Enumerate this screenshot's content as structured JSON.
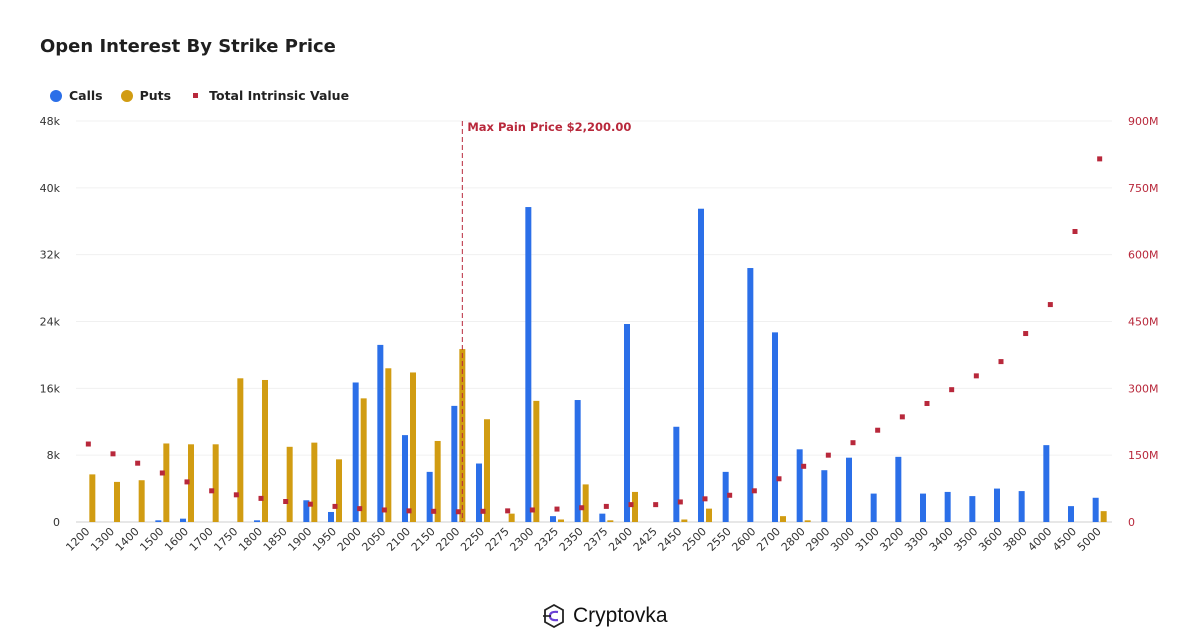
{
  "chart_data": {
    "type": "bar",
    "title": "Open Interest By Strike Price",
    "categories": [
      "1200",
      "1300",
      "1400",
      "1500",
      "1600",
      "1700",
      "1750",
      "1800",
      "1850",
      "1900",
      "1950",
      "2000",
      "2050",
      "2100",
      "2150",
      "2200",
      "2250",
      "2275",
      "2300",
      "2325",
      "2350",
      "2375",
      "2400",
      "2425",
      "2450",
      "2500",
      "2550",
      "2600",
      "2700",
      "2800",
      "2900",
      "3000",
      "3100",
      "3200",
      "3300",
      "3400",
      "3500",
      "3600",
      "3800",
      "4000",
      "4500",
      "5000"
    ],
    "y_left": {
      "ticks": [
        "0",
        "8k",
        "16k",
        "24k",
        "32k",
        "40k",
        "48k"
      ],
      "ylim": [
        0,
        48000
      ]
    },
    "y_right": {
      "ticks": [
        "0",
        "150M",
        "300M",
        "450M",
        "600M",
        "750M",
        "900M"
      ],
      "ylim": [
        0,
        900000000
      ]
    },
    "series": [
      {
        "name": "Calls",
        "type": "bar",
        "color": "#2b6fe8",
        "values": [
          0,
          0,
          0,
          200,
          400,
          0,
          0,
          200,
          0,
          2600,
          1200,
          16700,
          21200,
          10400,
          6000,
          13900,
          7000,
          0,
          37700,
          700,
          14600,
          1000,
          23700,
          0,
          11400,
          37500,
          6000,
          30400,
          22700,
          8700,
          6200,
          7700,
          3400,
          7800,
          3400,
          3600,
          3100,
          4000,
          3700,
          9200,
          1900,
          2900
        ]
      },
      {
        "name": "Puts",
        "type": "bar",
        "color": "#d19c12",
        "values": [
          5700,
          4800,
          5000,
          9400,
          9300,
          9300,
          17200,
          17000,
          9000,
          9500,
          7500,
          14800,
          18400,
          17900,
          9700,
          20700,
          12300,
          1000,
          14500,
          300,
          4500,
          200,
          3600,
          0,
          300,
          1600,
          0,
          0,
          700,
          200,
          0,
          0,
          0,
          0,
          0,
          0,
          0,
          0,
          0,
          0,
          0,
          1300
        ]
      },
      {
        "name": "Total Intrinsic Value",
        "type": "scatter",
        "color": "#b8283b",
        "values": [
          175000000,
          153000000,
          132000000,
          110000000,
          90000000,
          70000000,
          61000000,
          53000000,
          46000000,
          40000000,
          35000000,
          30000000,
          27000000,
          25000000,
          24000000,
          23000000,
          24000000,
          25000000,
          27000000,
          29000000,
          32000000,
          35000000,
          39000000,
          39000000,
          45000000,
          52000000,
          60000000,
          70000000,
          97000000,
          125000000,
          150000000,
          178000000,
          206000000,
          236000000,
          266000000,
          297000000,
          328000000,
          360000000,
          423000000,
          488000000,
          652000000,
          815000000
        ]
      }
    ],
    "annotation": {
      "category": "2200",
      "label": "Max Pain Price $2,200.00"
    },
    "grid": true,
    "legend_position": "top-left"
  },
  "legend": [
    "Calls",
    "Puts",
    "Total Intrinsic Value"
  ],
  "brand": "Cryptovka"
}
